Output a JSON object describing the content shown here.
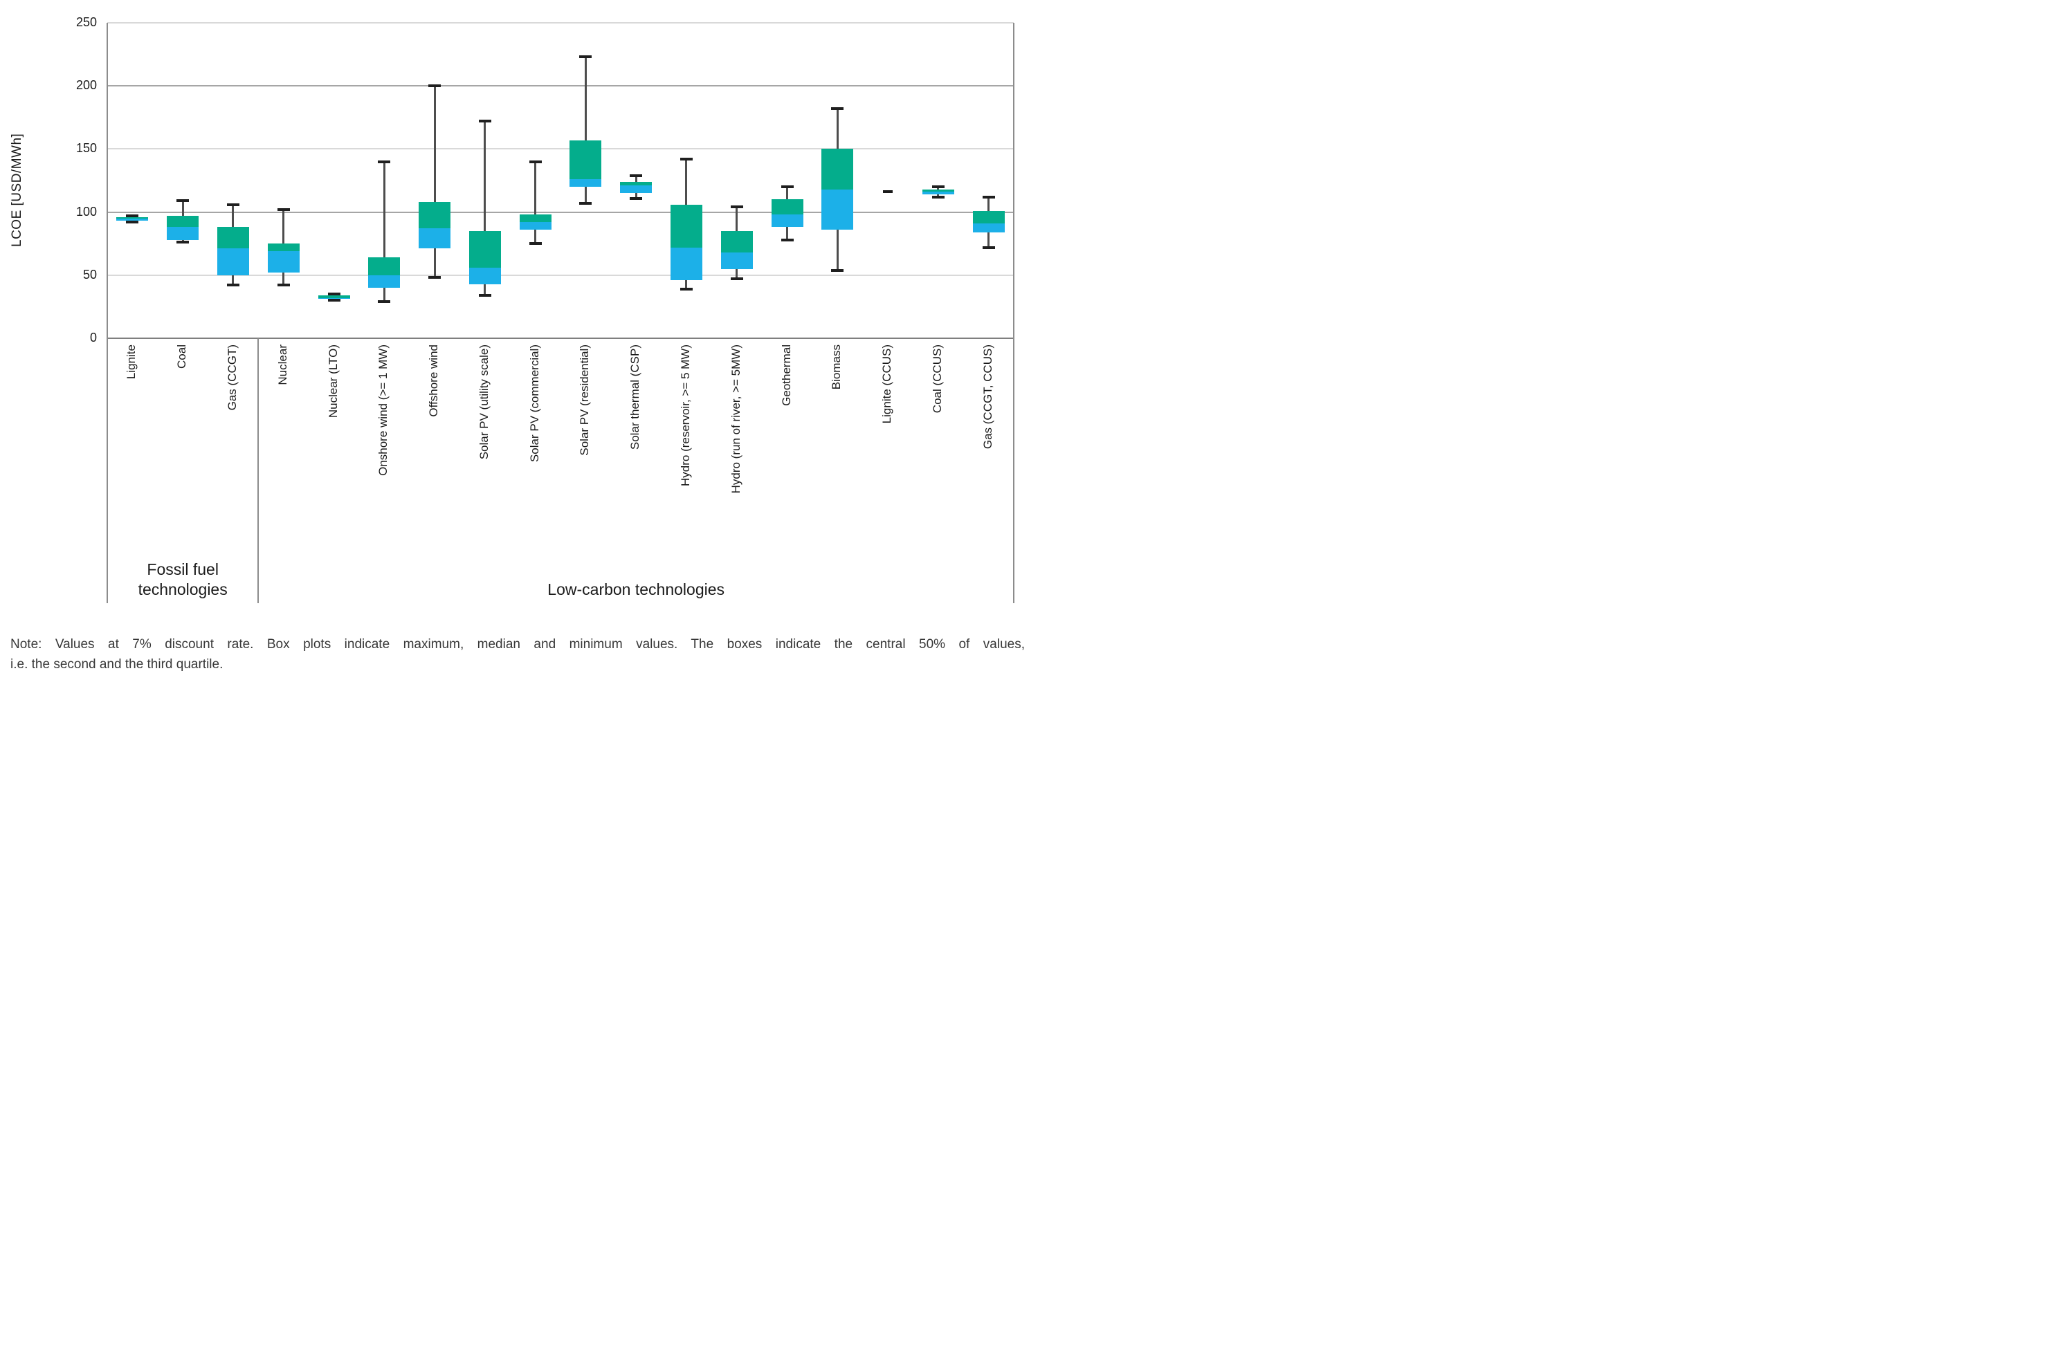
{
  "chart_data": {
    "type": "box",
    "title": "",
    "xlabel": "",
    "ylabel": "LCOE [USD/MWh]",
    "ylim": [
      0,
      250
    ],
    "yticks": [
      0,
      50,
      100,
      150,
      200,
      250
    ],
    "major_gridlines": [
      100,
      200
    ],
    "minor_gridlines": [
      50,
      150,
      250
    ],
    "grid": "horizontal",
    "legend": "none",
    "colors": {
      "box_upper_quartile": "#04ad8c",
      "box_lower_quartile": "#1cb0e8",
      "whisker": "#4d4d4d",
      "whisker_cap": "#1f1f1f",
      "gridline_light": "#d9d9d9",
      "gridline_dark": "#a6a6a6",
      "axis": "#7f7f7f"
    },
    "groups": [
      {
        "label": "Fossil fuel technologies",
        "label_lines": [
          "Fossil fuel",
          "technologies"
        ],
        "category_indices": [
          0,
          1,
          2
        ]
      },
      {
        "label": "Low-carbon technologies",
        "label_lines": [
          "Low-carbon technologies"
        ],
        "category_indices": [
          3,
          4,
          5,
          6,
          7,
          8,
          9,
          10,
          11,
          12,
          13,
          14,
          15,
          16,
          17
        ]
      }
    ],
    "categories": [
      {
        "label": "Lignite",
        "group": 0,
        "min": 92,
        "q1": 93,
        "median": 95,
        "q3": 96,
        "max": 97,
        "dash_only": false
      },
      {
        "label": "Coal",
        "group": 0,
        "min": 76,
        "q1": 78,
        "median": 88,
        "q3": 97,
        "max": 109,
        "dash_only": false
      },
      {
        "label": "Gas (CCGT)",
        "group": 0,
        "min": 42,
        "q1": 50,
        "median": 71,
        "q3": 88,
        "max": 106,
        "dash_only": false
      },
      {
        "label": "Nuclear",
        "group": 1,
        "min": 42,
        "q1": 52,
        "median": 69,
        "q3": 75,
        "max": 102,
        "dash_only": false
      },
      {
        "label": "Nuclear (LTO)",
        "group": 1,
        "min": 30,
        "q1": 31,
        "median": 32,
        "q3": 34,
        "max": 35,
        "dash_only": false
      },
      {
        "label": "Onshore wind (>= 1 MW)",
        "group": 1,
        "min": 29,
        "q1": 40,
        "median": 50,
        "q3": 64,
        "max": 140,
        "dash_only": false
      },
      {
        "label": "Offshore wind",
        "group": 1,
        "min": 48,
        "q1": 71,
        "median": 87,
        "q3": 108,
        "max": 200,
        "dash_only": false
      },
      {
        "label": "Solar PV (utility scale)",
        "group": 1,
        "min": 34,
        "q1": 43,
        "median": 56,
        "q3": 85,
        "max": 172,
        "dash_only": false
      },
      {
        "label": "Solar PV (commercial)",
        "group": 1,
        "min": 75,
        "q1": 86,
        "median": 92,
        "q3": 98,
        "max": 140,
        "dash_only": false
      },
      {
        "label": "Solar PV (residential)",
        "group": 1,
        "min": 107,
        "q1": 120,
        "median": 126,
        "q3": 157,
        "max": 223,
        "dash_only": false
      },
      {
        "label": "Solar thermal (CSP)",
        "group": 1,
        "min": 111,
        "q1": 115,
        "median": 121,
        "q3": 124,
        "max": 129,
        "dash_only": false
      },
      {
        "label": "Hydro (reservoir, >= 5 MW)",
        "group": 1,
        "min": 39,
        "q1": 46,
        "median": 72,
        "q3": 106,
        "max": 142,
        "dash_only": false
      },
      {
        "label": "Hydro (run of river, >= 5MW)",
        "group": 1,
        "min": 47,
        "q1": 55,
        "median": 68,
        "q3": 85,
        "max": 104,
        "dash_only": false
      },
      {
        "label": "Geothermal",
        "group": 1,
        "min": 78,
        "q1": 88,
        "median": 98,
        "q3": 110,
        "max": 120,
        "dash_only": false
      },
      {
        "label": "Biomass",
        "group": 1,
        "min": 54,
        "q1": 86,
        "median": 118,
        "q3": 150,
        "max": 182,
        "dash_only": false
      },
      {
        "label": "Lignite (CCUS)",
        "group": 1,
        "min": 116,
        "q1": 116,
        "median": 116,
        "q3": 116,
        "max": 116,
        "dash_only": true
      },
      {
        "label": "Coal (CCUS)",
        "group": 1,
        "min": 112,
        "q1": 114,
        "median": 116,
        "q3": 118,
        "max": 120,
        "dash_only": false
      },
      {
        "label": "Gas (CCGT, CCUS)",
        "group": 1,
        "min": 72,
        "q1": 84,
        "median": 91,
        "q3": 101,
        "max": 112,
        "dash_only": false
      }
    ]
  },
  "note_lines": [
    "Note: Values at 7% discount rate. Box plots indicate maximum, median and minimum values. The boxes indicate the central 50% of values,",
    "i.e. the second and the third quartile."
  ]
}
